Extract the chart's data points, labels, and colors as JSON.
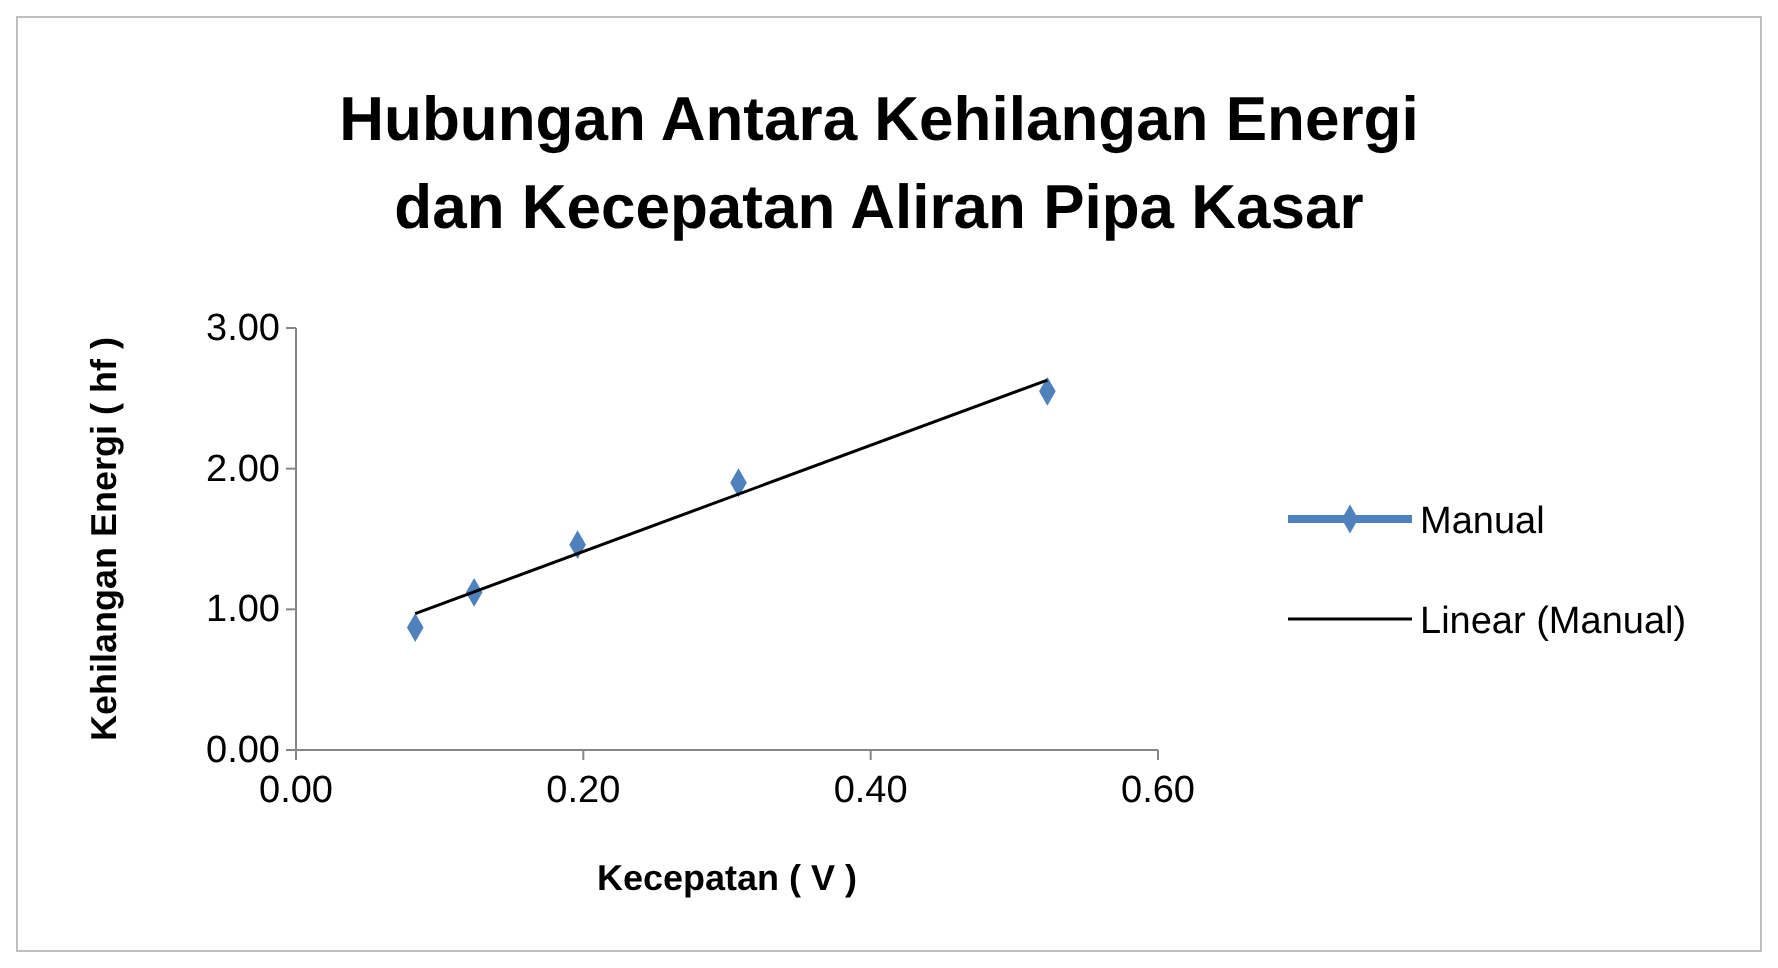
{
  "chart_data": {
    "type": "scatter",
    "title": "Hubungan Antara Kehilangan Energi dan Kecepatan Aliran Pipa Kasar",
    "xlabel": "Kecepatan ( V )",
    "ylabel": "Kehilangan Energi ( hf )",
    "xlim": [
      0,
      0.6
    ],
    "xticks": [
      {
        "value": 0,
        "label": "0.00"
      },
      {
        "value": 0.2,
        "label": "0.20"
      },
      {
        "value": 0.4,
        "label": "0.40"
      },
      {
        "value": 0.6,
        "label": "0.60"
      }
    ],
    "ylim": [
      0,
      3
    ],
    "yticks": [
      {
        "value": 0,
        "label": "0.00"
      },
      {
        "value": 1,
        "label": "1.00"
      },
      {
        "value": 2,
        "label": "2.00"
      },
      {
        "value": 3,
        "label": "3.00"
      }
    ],
    "grid": false,
    "legend": "right",
    "series": [
      {
        "name": "Manual",
        "marker": "diamond",
        "color": "#4f81bd",
        "x": [
          0.083,
          0.124,
          0.196,
          0.308,
          0.523
        ],
        "values": [
          0.87,
          1.12,
          1.46,
          1.9,
          2.55
        ]
      },
      {
        "name": "Linear (Manual)",
        "type": "line",
        "marker": "none",
        "color": "#000000",
        "x": [
          0.083,
          0.523
        ],
        "values": [
          0.97,
          2.63
        ]
      }
    ]
  }
}
